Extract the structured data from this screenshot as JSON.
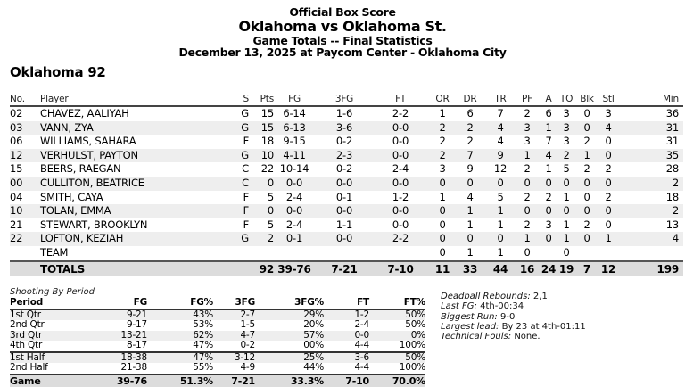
{
  "header": {
    "title": "Official Box Score",
    "matchup": "Oklahoma vs Oklahoma St.",
    "subtitle": "Game Totals -- Final Statistics",
    "date_location": "December 13, 2025 at Paycom Center - Oklahoma City"
  },
  "team_heading": "Oklahoma 92",
  "box_score": {
    "columns": [
      "No.",
      "Player",
      "S",
      "Pts",
      "FG",
      "3FG",
      "FT",
      "OR",
      "DR",
      "TR",
      "PF",
      "A",
      "TO",
      "Blk",
      "Stl",
      "Min"
    ],
    "rows": [
      {
        "no": "02",
        "player": "CHAVEZ, AALIYAH",
        "s": "G",
        "pts": "15",
        "fg": "6-14",
        "fg3": "1-6",
        "ft": "2-2",
        "or": "1",
        "dr": "6",
        "tr": "7",
        "pf": "2",
        "a": "6",
        "to": "3",
        "blk": "0",
        "stl": "3",
        "min": "36"
      },
      {
        "no": "03",
        "player": "VANN, ZYA",
        "s": "G",
        "pts": "15",
        "fg": "6-13",
        "fg3": "3-6",
        "ft": "0-0",
        "or": "2",
        "dr": "2",
        "tr": "4",
        "pf": "3",
        "a": "1",
        "to": "3",
        "blk": "0",
        "stl": "4",
        "min": "31"
      },
      {
        "no": "06",
        "player": "WILLIAMS, SAHARA",
        "s": "F",
        "pts": "18",
        "fg": "9-15",
        "fg3": "0-2",
        "ft": "0-0",
        "or": "2",
        "dr": "2",
        "tr": "4",
        "pf": "3",
        "a": "7",
        "to": "3",
        "blk": "2",
        "stl": "0",
        "min": "31"
      },
      {
        "no": "12",
        "player": "VERHULST, PAYTON",
        "s": "G",
        "pts": "10",
        "fg": "4-11",
        "fg3": "2-3",
        "ft": "0-0",
        "or": "2",
        "dr": "7",
        "tr": "9",
        "pf": "1",
        "a": "4",
        "to": "2",
        "blk": "1",
        "stl": "0",
        "min": "35"
      },
      {
        "no": "15",
        "player": "BEERS, RAEGAN",
        "s": "C",
        "pts": "22",
        "fg": "10-14",
        "fg3": "0-2",
        "ft": "2-4",
        "or": "3",
        "dr": "9",
        "tr": "12",
        "pf": "2",
        "a": "1",
        "to": "5",
        "blk": "2",
        "stl": "2",
        "min": "28"
      },
      {
        "no": "00",
        "player": "CULLITON, BEATRICE",
        "s": "C",
        "pts": "0",
        "fg": "0-0",
        "fg3": "0-0",
        "ft": "0-0",
        "or": "0",
        "dr": "0",
        "tr": "0",
        "pf": "0",
        "a": "0",
        "to": "0",
        "blk": "0",
        "stl": "0",
        "min": "2"
      },
      {
        "no": "04",
        "player": "SMITH, CAYA",
        "s": "F",
        "pts": "5",
        "fg": "2-4",
        "fg3": "0-1",
        "ft": "1-2",
        "or": "1",
        "dr": "4",
        "tr": "5",
        "pf": "2",
        "a": "2",
        "to": "1",
        "blk": "0",
        "stl": "2",
        "min": "18"
      },
      {
        "no": "10",
        "player": "TOLAN, EMMA",
        "s": "F",
        "pts": "0",
        "fg": "0-0",
        "fg3": "0-0",
        "ft": "0-0",
        "or": "0",
        "dr": "1",
        "tr": "1",
        "pf": "0",
        "a": "0",
        "to": "0",
        "blk": "0",
        "stl": "0",
        "min": "2"
      },
      {
        "no": "21",
        "player": "STEWART, BROOKLYN",
        "s": "F",
        "pts": "5",
        "fg": "2-4",
        "fg3": "1-1",
        "ft": "0-0",
        "or": "0",
        "dr": "1",
        "tr": "1",
        "pf": "2",
        "a": "3",
        "to": "1",
        "blk": "2",
        "stl": "0",
        "min": "13"
      },
      {
        "no": "22",
        "player": "LOFTON, KEZIAH",
        "s": "G",
        "pts": "2",
        "fg": "0-1",
        "fg3": "0-0",
        "ft": "2-2",
        "or": "0",
        "dr": "0",
        "tr": "0",
        "pf": "1",
        "a": "0",
        "to": "1",
        "blk": "0",
        "stl": "1",
        "min": "4"
      },
      {
        "no": "",
        "player": "TEAM",
        "s": "",
        "pts": "",
        "fg": "",
        "fg3": "",
        "ft": "",
        "or": "0",
        "dr": "1",
        "tr": "1",
        "pf": "0",
        "a": "",
        "to": "0",
        "blk": "",
        "stl": "",
        "min": ""
      }
    ],
    "totals": {
      "label": "TOTALS",
      "pts": "92",
      "fg": "39-76",
      "fg3": "7-21",
      "ft": "7-10",
      "or": "11",
      "dr": "33",
      "tr": "44",
      "pf": "16",
      "a": "24",
      "to": "19",
      "blk": "7",
      "stl": "12",
      "min": "199"
    }
  },
  "shooting_by_period": {
    "title": "Shooting By Period",
    "columns": [
      "Period",
      "FG",
      "FG%",
      "3FG",
      "3FG%",
      "FT",
      "FT%"
    ],
    "rows": [
      {
        "period": "1st Qtr",
        "fg": "9-21",
        "fgp": "43%",
        "fg3": "2-7",
        "fg3p": "29%",
        "ft": "1-2",
        "ftp": "50%"
      },
      {
        "period": "2nd Qtr",
        "fg": "9-17",
        "fgp": "53%",
        "fg3": "1-5",
        "fg3p": "20%",
        "ft": "2-4",
        "ftp": "50%"
      },
      {
        "period": "3rd Qtr",
        "fg": "13-21",
        "fgp": "62%",
        "fg3": "4-7",
        "fg3p": "57%",
        "ft": "0-0",
        "ftp": "0%"
      },
      {
        "period": "4th Qtr",
        "fg": "8-17",
        "fgp": "47%",
        "fg3": "0-2",
        "fg3p": "00%",
        "ft": "4-4",
        "ftp": "100%"
      },
      {
        "period": "1st Half",
        "fg": "18-38",
        "fgp": "47%",
        "fg3": "3-12",
        "fg3p": "25%",
        "ft": "3-6",
        "ftp": "50%"
      },
      {
        "period": "2nd Half",
        "fg": "21-38",
        "fgp": "55%",
        "fg3": "4-9",
        "fg3p": "44%",
        "ft": "4-4",
        "ftp": "100%"
      }
    ],
    "game": {
      "period": "Game",
      "fg": "39-76",
      "fgp": "51.3%",
      "fg3": "7-21",
      "fg3p": "33.3%",
      "ft": "7-10",
      "ftp": "70.0%"
    }
  },
  "notes": [
    {
      "label": "Deadball Rebounds:",
      "value": "2,1"
    },
    {
      "label": "Last FG:",
      "value": "4th-00:34"
    },
    {
      "label": "Biggest Run:",
      "value": "9-0"
    },
    {
      "label": "Largest lead:",
      "value": "By 23 at 4th-01:11"
    },
    {
      "label": "Technical Fouls:",
      "value": "None."
    }
  ]
}
